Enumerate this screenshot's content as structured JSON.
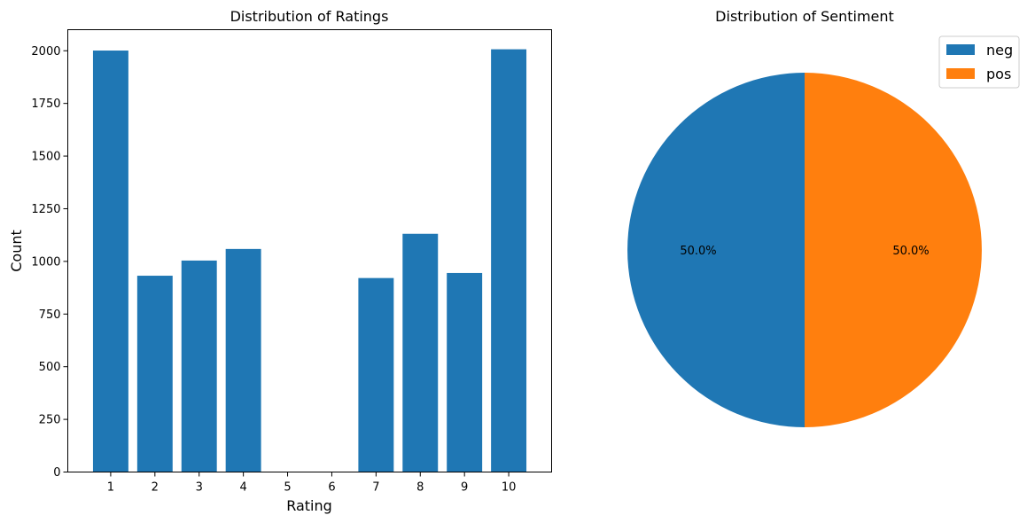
{
  "chart_data": [
    {
      "type": "bar",
      "title": "Distribution of Ratings",
      "xlabel": "Rating",
      "ylabel": "Count",
      "categories": [
        "1",
        "2",
        "3",
        "4",
        "5",
        "6",
        "7",
        "8",
        "9",
        "10"
      ],
      "values": [
        2001,
        932,
        1004,
        1059,
        0,
        0,
        921,
        1131,
        945,
        2007
      ],
      "ylim": [
        0,
        2100
      ],
      "yticks": [
        0,
        250,
        500,
        750,
        1000,
        1250,
        1500,
        1750,
        2000
      ],
      "color": "#1f77b4",
      "grid": false
    },
    {
      "type": "pie",
      "title": "Distribution of Sentiment",
      "labels": [
        "neg",
        "pos"
      ],
      "values": [
        50.0,
        50.0
      ],
      "percent_labels": [
        "50.0%",
        "50.0%"
      ],
      "colors": [
        "#1f77b4",
        "#ff7f0e"
      ],
      "legend_position": "top-right"
    }
  ]
}
